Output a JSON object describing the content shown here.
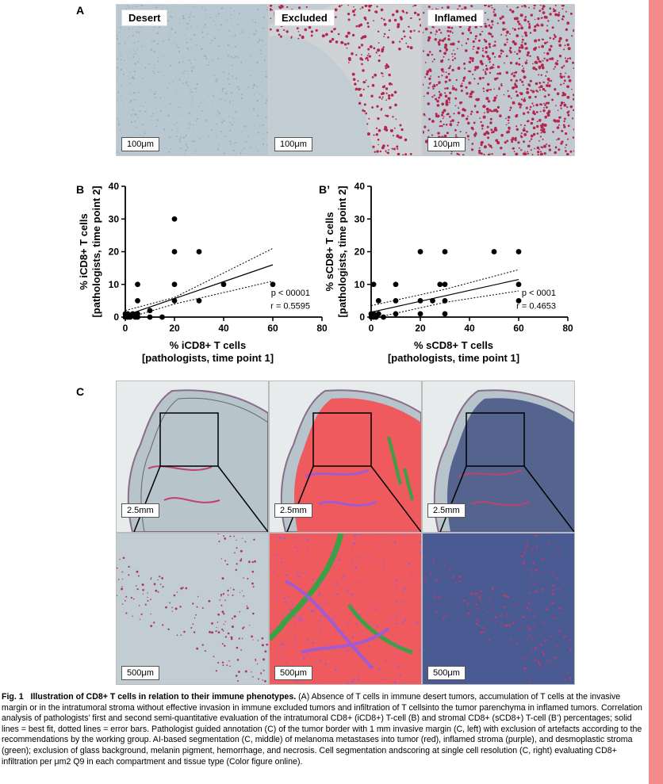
{
  "panel_letters": {
    "a": "A",
    "b": "B",
    "b_prime": "B’",
    "c": "C"
  },
  "panel_a": {
    "tiles": [
      {
        "label": "Desert",
        "scale": "100μm"
      },
      {
        "label": "Excluded",
        "scale": "100μm"
      },
      {
        "label": "Inflamed",
        "scale": "100μm"
      }
    ]
  },
  "panel_c": {
    "top_scale": "2.5mm",
    "bottom_scale": "500μm",
    "tiles": [
      "left",
      "middle",
      "right"
    ]
  },
  "colors": {
    "edge_bar": "#f28b8b",
    "tissue_blue": "#b7c6cf",
    "cd8_red": "#b3264d",
    "tumor_red": "#ee5a5e",
    "stroma_purple": "#a05ad2",
    "desmo_green": "#3ca046"
  },
  "chart_data": [
    {
      "type": "scatter",
      "panel": "B",
      "xlabel": "% iCD8+ T cells",
      "xlabel2": "[pathologists, time point 1]",
      "ylabel": "% iCD8+ T cells",
      "ylabel2": "[pathologists, time point 2]",
      "xlim": [
        0,
        80
      ],
      "ylim": [
        0,
        40
      ],
      "xticks": [
        0,
        20,
        40,
        60,
        80
      ],
      "yticks": [
        0,
        10,
        20,
        30,
        40
      ],
      "stat_p": "p < 00001",
      "stat_r": "r = 0.5595",
      "points": [
        [
          0,
          0
        ],
        [
          0,
          1
        ],
        [
          1,
          0
        ],
        [
          1,
          1
        ],
        [
          2,
          0
        ],
        [
          3,
          1
        ],
        [
          4,
          0
        ],
        [
          5,
          1
        ],
        [
          5,
          0
        ],
        [
          5,
          5
        ],
        [
          5,
          10
        ],
        [
          10,
          0
        ],
        [
          10,
          2
        ],
        [
          15,
          0
        ],
        [
          20,
          5
        ],
        [
          20,
          10
        ],
        [
          20,
          20
        ],
        [
          20,
          30
        ],
        [
          30,
          5
        ],
        [
          30,
          20
        ],
        [
          40,
          10
        ],
        [
          60,
          10
        ]
      ],
      "fit": [
        [
          0,
          0.5
        ],
        [
          60,
          16
        ]
      ],
      "ci_upper": [
        [
          0,
          2
        ],
        [
          20,
          6
        ],
        [
          60,
          21
        ]
      ],
      "ci_lower": [
        [
          0,
          -0.5
        ],
        [
          20,
          4
        ],
        [
          60,
          11
        ]
      ]
    },
    {
      "type": "scatter",
      "panel": "B’",
      "xlabel": "% sCD8+ T cells",
      "xlabel2": "[pathologists, time point 1]",
      "ylabel": "% sCD8+ T cells",
      "ylabel2": "[pathologists, time point 2]",
      "xlim": [
        0,
        80
      ],
      "ylim": [
        0,
        40
      ],
      "xticks": [
        0,
        20,
        40,
        60,
        80
      ],
      "yticks": [
        0,
        10,
        20,
        30,
        40
      ],
      "stat_p": "p < 0001",
      "stat_r": "r = 0.4653",
      "points": [
        [
          0,
          0
        ],
        [
          0,
          1
        ],
        [
          1,
          0
        ],
        [
          1,
          1
        ],
        [
          1,
          10
        ],
        [
          2,
          0
        ],
        [
          3,
          1
        ],
        [
          3,
          5
        ],
        [
          5,
          0
        ],
        [
          10,
          1
        ],
        [
          10,
          5
        ],
        [
          10,
          10
        ],
        [
          20,
          1
        ],
        [
          20,
          5
        ],
        [
          20,
          20
        ],
        [
          25,
          5
        ],
        [
          28,
          10
        ],
        [
          30,
          1
        ],
        [
          30,
          5
        ],
        [
          30,
          10
        ],
        [
          30,
          20
        ],
        [
          50,
          20
        ],
        [
          60,
          5
        ],
        [
          60,
          10
        ],
        [
          60,
          20
        ]
      ],
      "fit": [
        [
          0,
          1.5
        ],
        [
          60,
          11.5
        ]
      ],
      "ci_upper": [
        [
          0,
          3.5
        ],
        [
          30,
          8.5
        ],
        [
          60,
          14.5
        ]
      ],
      "ci_lower": [
        [
          0,
          -0.5
        ],
        [
          30,
          4.5
        ],
        [
          60,
          8
        ]
      ]
    }
  ],
  "caption": {
    "fig": "Fig. 1",
    "title": "Illustration of CD8+ T cells in relation to their immune phenotypes.",
    "body": "(A) Absence of T cells in immune desert tumors, accumulation of T cells at the invasive margin or in the intratumoral stroma without effective invasion in immune excluded tumors and infiltration of T cellsinto the tumor parenchyma in inflamed tumors. Correlation analysis of pathologists’ first and second semi-quantitative evaluation of the intratumoral CD8+ (iCD8+) T-cell (B) and stromal CD8+ (sCD8+) T-cell (B’) percentages; solid lines = best fit, dotted lines = error bars. Pathologist guided annotation (C) of the tumor border with 1 mm invasive margin (C, left) with exclusion of artefacts according to the recommendations by the working group. AI-based segmentation (C, middle) of melanoma metastases into tumor (red), inflamed stroma (purple), and desmoplastic stroma (green); exclusion of glass background, melanin pigment, hemorrhage, and necrosis. Cell segmentation andscoring at single cell resolution (C, right) evaluating CD8+ infiltration per μm2 Q9 in each compartment and tissue type (Color figure online)."
  }
}
